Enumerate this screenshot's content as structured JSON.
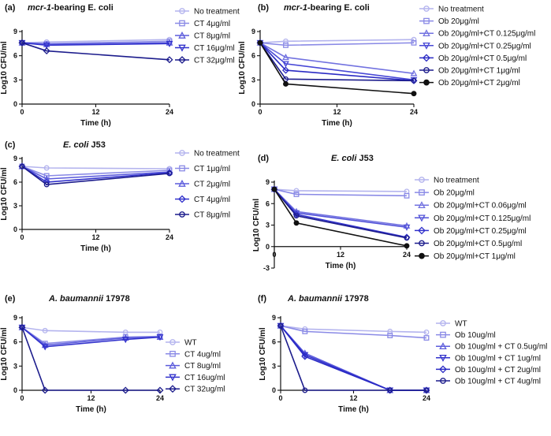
{
  "chart_data": [
    {
      "type": "line",
      "panel_label": "(a)",
      "title": "mcr-1-bearing E. coli",
      "title_italic": "mcr-1",
      "title_rest": "-bearing E. coli",
      "xlabel": "Time (h)",
      "ylabel": "Log10 CFU/ml",
      "xlim": [
        0,
        24
      ],
      "ylim": [
        0,
        9
      ],
      "x_ticks": [
        0,
        12,
        24
      ],
      "y_ticks": [
        0,
        3,
        6,
        9
      ],
      "x": [
        0,
        4,
        24
      ],
      "series": [
        {
          "name": "No treatment",
          "marker": "circle",
          "color": "#b4b4ee",
          "values": [
            7.6,
            7.7,
            8.0
          ]
        },
        {
          "name": "CT 4μg/ml",
          "marker": "square",
          "color": "#8a8ae6",
          "values": [
            7.6,
            7.5,
            7.8
          ]
        },
        {
          "name": "CT 8μg/ml",
          "marker": "triangle-up",
          "color": "#5c5cdc",
          "values": [
            7.6,
            7.4,
            7.6
          ]
        },
        {
          "name": "CT 16μg/ml",
          "marker": "triangle-down",
          "color": "#3232cc",
          "values": [
            7.6,
            7.3,
            7.5
          ]
        },
        {
          "name": "CT 32μg/ml",
          "marker": "diamond",
          "color": "#1c1c8c",
          "values": [
            7.6,
            6.6,
            5.5
          ]
        }
      ]
    },
    {
      "type": "line",
      "panel_label": "(b)",
      "title": "mcr-1-bearing E. coli",
      "title_italic": "mcr-1",
      "title_rest": "-bearing E. coli",
      "xlabel": "Time (h)",
      "ylabel": "Log10 CFU/ml",
      "xlim": [
        0,
        24
      ],
      "ylim": [
        0,
        9
      ],
      "x_ticks": [
        0,
        12,
        24
      ],
      "y_ticks": [
        0,
        3,
        6,
        9
      ],
      "x": [
        0,
        4,
        24
      ],
      "series": [
        {
          "name": "No treatment",
          "marker": "circle",
          "color": "#b4b4ee",
          "values": [
            7.6,
            7.8,
            8.0
          ]
        },
        {
          "name": "Ob 20μg/ml",
          "marker": "square",
          "color": "#8a8ae6",
          "values": [
            7.6,
            7.3,
            7.6
          ]
        },
        {
          "name": "Ob 20μg/ml+CT 0.125μg/ml",
          "marker": "triangle-up",
          "color": "#7272e0",
          "values": [
            7.6,
            5.8,
            3.8
          ]
        },
        {
          "name": "Ob 20μg/ml+CT 0.25μg/ml",
          "marker": "triangle-down",
          "color": "#4848d6",
          "values": [
            7.6,
            5.0,
            3.0
          ]
        },
        {
          "name": "Ob 20μg/ml+CT 0.5μg/ml",
          "marker": "diamond",
          "color": "#2a2ac4",
          "values": [
            7.6,
            4.2,
            2.9
          ]
        },
        {
          "name": "Ob 20μg/ml+CT 1μg/ml",
          "marker": "circle",
          "color": "#1c1c8c",
          "values": [
            7.6,
            3.1,
            2.9
          ]
        },
        {
          "name": "Ob 20μg/ml+CT 2μg/ml",
          "marker": "filled-circle",
          "color": "#111111",
          "values": [
            7.6,
            2.5,
            1.3
          ]
        }
      ]
    },
    {
      "type": "line",
      "panel_label": "(c)",
      "title": "E. coli J53",
      "title_italic": "E. coli",
      "title_rest": " J53",
      "xlabel": "Time (h)",
      "ylabel": "Log10 CFU/ml",
      "xlim": [
        0,
        24
      ],
      "ylim": [
        0,
        9
      ],
      "x_ticks": [
        0,
        12,
        24
      ],
      "y_ticks": [
        0,
        3,
        6,
        9
      ],
      "x": [
        0,
        4,
        24
      ],
      "series": [
        {
          "name": "No treatment",
          "marker": "circle",
          "color": "#b4b4ee",
          "values": [
            8.0,
            7.8,
            7.7
          ]
        },
        {
          "name": "CT 1μg/ml",
          "marker": "square",
          "color": "#8a8ae6",
          "values": [
            8.0,
            6.8,
            7.5
          ]
        },
        {
          "name": "CT 2μg/ml",
          "marker": "triangle-up",
          "color": "#5c5cdc",
          "values": [
            8.0,
            6.4,
            7.3
          ]
        },
        {
          "name": "CT 4μg/ml",
          "marker": "diamond",
          "color": "#3232cc",
          "values": [
            8.0,
            6.0,
            7.2
          ]
        },
        {
          "name": "CT 8μg/ml",
          "marker": "circle",
          "color": "#1c1c8c",
          "values": [
            8.0,
            5.7,
            7.1
          ]
        }
      ]
    },
    {
      "type": "line",
      "panel_label": "(d)",
      "title": "E. coli J53",
      "title_italic": "E. coli",
      "title_rest": " J53",
      "xlabel": "Time (h)",
      "ylabel": "Log10 CFU/ml",
      "xlim": [
        0,
        24
      ],
      "ylim": [
        -3,
        9
      ],
      "x_ticks": [
        0,
        12,
        24
      ],
      "y_ticks": [
        -3,
        0,
        3,
        6,
        9
      ],
      "x": [
        0,
        4,
        24
      ],
      "series": [
        {
          "name": "No treatment",
          "marker": "circle",
          "color": "#b4b4ee",
          "values": [
            8.0,
            7.8,
            7.7
          ]
        },
        {
          "name": "Ob 20μg/ml",
          "marker": "square",
          "color": "#8a8ae6",
          "values": [
            8.0,
            7.3,
            7.1
          ]
        },
        {
          "name": "Ob 20μg/ml+CT 0.06μg/ml",
          "marker": "triangle-up",
          "color": "#7272e0",
          "values": [
            8.0,
            4.9,
            2.9
          ]
        },
        {
          "name": "Ob 20μg/ml+CT 0.125μg/ml",
          "marker": "triangle-down",
          "color": "#5252d8",
          "values": [
            8.0,
            4.7,
            2.7
          ]
        },
        {
          "name": "Ob 20μg/ml+CT 0.25μg/ml",
          "marker": "diamond",
          "color": "#3232cc",
          "values": [
            8.0,
            4.5,
            1.3
          ]
        },
        {
          "name": "Ob 20μg/ml+CT 0.5μg/ml",
          "marker": "circle",
          "color": "#1c1c8c",
          "values": [
            8.0,
            4.3,
            1.2
          ]
        },
        {
          "name": "Ob 20μg/ml+CT 1μg/ml",
          "marker": "filled-circle",
          "color": "#111111",
          "values": [
            8.0,
            3.3,
            0.1
          ]
        }
      ]
    },
    {
      "type": "line",
      "panel_label": "(e)",
      "title": "A. baumannii 17978",
      "title_italic": "A. baumannii",
      "title_rest": " 17978",
      "xlabel": "Time (h)",
      "ylabel": "Log10 CFU/ml",
      "xlim": [
        0,
        24
      ],
      "ylim": [
        0,
        9
      ],
      "x_ticks": [
        0,
        12,
        24
      ],
      "y_ticks": [
        0,
        3,
        6,
        9
      ],
      "x": [
        0,
        4,
        18,
        24
      ],
      "series": [
        {
          "name": "WT",
          "marker": "circle",
          "color": "#b4b4ee",
          "values": [
            7.8,
            7.4,
            7.2,
            7.2
          ]
        },
        {
          "name": "CT 4ug/ml",
          "marker": "square",
          "color": "#8a8ae6",
          "values": [
            7.8,
            5.8,
            6.6,
            6.7
          ]
        },
        {
          "name": "CT 8ug/ml",
          "marker": "triangle-up",
          "color": "#5c5cdc",
          "values": [
            7.8,
            5.6,
            6.5,
            6.6
          ]
        },
        {
          "name": "CT 16ug/ml",
          "marker": "triangle-down",
          "color": "#3232cc",
          "values": [
            7.8,
            5.4,
            6.3,
            6.6
          ]
        },
        {
          "name": "CT 32ug/ml",
          "marker": "diamond",
          "color": "#1c1c8c",
          "values": [
            7.8,
            0,
            0,
            0
          ]
        }
      ]
    },
    {
      "type": "line",
      "panel_label": "(f)",
      "title": "A. baumannii 17978",
      "title_italic": "A. baumannii",
      "title_rest": " 17978",
      "xlabel": "Time (h)",
      "ylabel": "Log10 CFU/ml",
      "xlim": [
        0,
        24
      ],
      "ylim": [
        0,
        9
      ],
      "x_ticks": [
        0,
        12,
        24
      ],
      "y_ticks": [
        0,
        3,
        6,
        9
      ],
      "x": [
        0,
        4,
        18,
        24
      ],
      "series": [
        {
          "name": "WT",
          "marker": "circle",
          "color": "#b4b4ee",
          "values": [
            8.0,
            7.6,
            7.3,
            7.2
          ]
        },
        {
          "name": "Ob 10ug/ml",
          "marker": "square",
          "color": "#8a8ae6",
          "values": [
            8.0,
            7.3,
            6.8,
            6.5
          ]
        },
        {
          "name": "Ob 10ug/ml + CT 0.5ug/ml",
          "marker": "triangle-up",
          "color": "#5c5cdc",
          "values": [
            8.0,
            4.6,
            0,
            0
          ]
        },
        {
          "name": "Ob 10ug/ml + CT 1ug/ml",
          "marker": "triangle-down",
          "color": "#3232cc",
          "values": [
            8.0,
            4.4,
            0,
            0
          ]
        },
        {
          "name": "Ob 10ug/ml + CT 2ug/ml",
          "marker": "diamond",
          "color": "#2a2ac4",
          "values": [
            8.0,
            4.2,
            0,
            0
          ]
        },
        {
          "name": "Ob 10ug/ml + CT 4ug/ml",
          "marker": "circle",
          "color": "#1c1c8c",
          "values": [
            8.0,
            0,
            0,
            0
          ]
        }
      ]
    }
  ]
}
